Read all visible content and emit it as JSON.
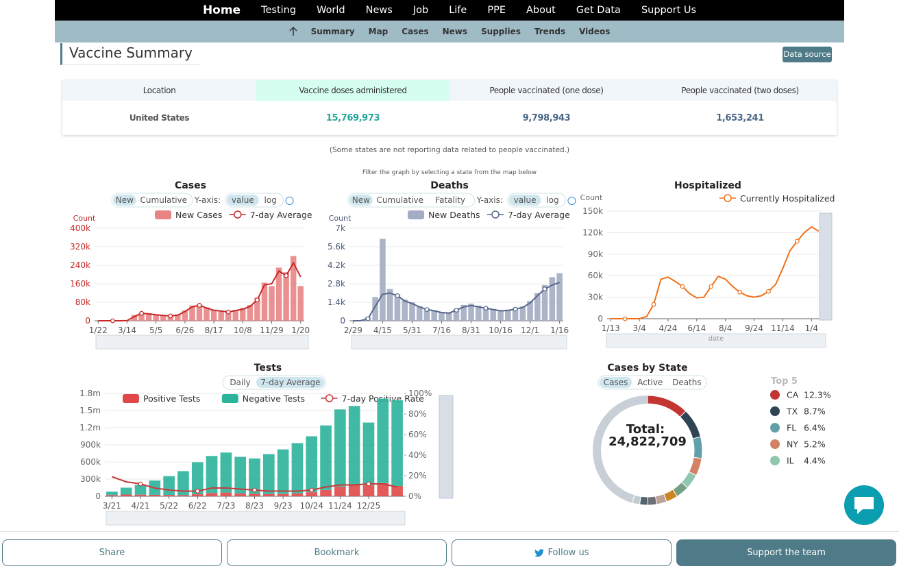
{
  "nav": {
    "brand": "Home",
    "items": [
      "Testing",
      "World",
      "News",
      "Job",
      "Life",
      "PPE",
      "About",
      "Get Data",
      "Support Us"
    ]
  },
  "subnav": [
    "Summary",
    "Map",
    "Cases",
    "News",
    "Supplies",
    "Trends",
    "Videos"
  ],
  "summary": {
    "title": "Vaccine Summary",
    "data_source": "Data source",
    "headers": [
      "Location",
      "Vaccine doses administered",
      "People vaccinated (one dose)",
      "People vaccinated (two doses)"
    ],
    "rows": [
      [
        "United States",
        "15,769,973",
        "9,798,943",
        "1,653,241"
      ]
    ],
    "note": "(Some states are not reporting data related to people vaccinated.)"
  },
  "filter_note": "Filter the graph by selecting a state from the map below",
  "chart_data": [
    {
      "type": "bar",
      "title": "Cases",
      "controls": [
        "New",
        "Cumulative"
      ],
      "yaxis_label": "Y-axis:",
      "scale_options": [
        "value",
        "log"
      ],
      "axis_label": "Count",
      "categories": [
        "1/22",
        null,
        null,
        null,
        "3/14",
        null,
        null,
        null,
        "5/5",
        null,
        null,
        null,
        "6/26",
        null,
        null,
        null,
        "8/17",
        null,
        null,
        null,
        "10/8",
        null,
        null,
        null,
        "11/29",
        null,
        null,
        null,
        "1/20"
      ],
      "series": [
        {
          "name": "New Cases",
          "type": "bar",
          "color": "#e88484",
          "values": [
            0,
            0,
            0,
            0,
            1000,
            25000,
            35000,
            32000,
            28000,
            24000,
            22000,
            27000,
            45000,
            66000,
            70000,
            58000,
            48000,
            44000,
            40000,
            47000,
            55000,
            68000,
            100000,
            165000,
            150000,
            230000,
            210000,
            280000,
            150000
          ]
        },
        {
          "name": "7-day Average",
          "type": "line",
          "color": "#c62828",
          "values": [
            0,
            0,
            0,
            0,
            600,
            18000,
            32000,
            30000,
            26000,
            23000,
            21000,
            24000,
            40000,
            60000,
            67000,
            55000,
            45000,
            42000,
            38000,
            44000,
            50000,
            62000,
            90000,
            155000,
            160000,
            215000,
            195000,
            250000,
            190000
          ]
        }
      ],
      "ylim": [
        0,
        400000
      ],
      "yticks": [
        0,
        {
          "value": 80000,
          "label": "80k"
        },
        {
          "value": 160000,
          "label": "160k"
        },
        {
          "value": 240000,
          "label": "240k"
        },
        {
          "value": 320000,
          "label": "320k"
        },
        {
          "value": 400000,
          "label": "400k"
        }
      ],
      "grid": true,
      "axis_color": "#c62828"
    },
    {
      "type": "bar",
      "title": "Deaths",
      "controls": [
        "New",
        "Cumulative",
        "Fatality"
      ],
      "yaxis_label": "Y-axis:",
      "scale_options": [
        "value",
        "log"
      ],
      "axis_label": "Count",
      "categories": [
        "2/29",
        null,
        null,
        null,
        "4/15",
        null,
        null,
        null,
        "5/31",
        null,
        null,
        null,
        "7/16",
        null,
        null,
        null,
        "8/31",
        null,
        null,
        null,
        "10/16",
        null,
        null,
        null,
        "12/1",
        null,
        null,
        null,
        "1/16"
      ],
      "series": [
        {
          "name": "New Deaths",
          "type": "bar",
          "color": "#a3acc2",
          "values": [
            0,
            20,
            300,
            1800,
            6200,
            2400,
            2000,
            1600,
            1400,
            1100,
            900,
            800,
            650,
            600,
            900,
            1200,
            1300,
            1150,
            1000,
            900,
            800,
            850,
            950,
            1100,
            1500,
            2100,
            2700,
            3300,
            3600
          ]
        },
        {
          "name": "7-day Average",
          "type": "line",
          "color": "#56668c",
          "values": [
            0,
            5,
            150,
            1100,
            2000,
            2100,
            1900,
            1500,
            1300,
            1050,
            850,
            750,
            620,
            580,
            800,
            1050,
            1150,
            1050,
            950,
            850,
            750,
            780,
            880,
            1000,
            1350,
            1900,
            2400,
            2700,
            2900
          ]
        }
      ],
      "ylim": [
        0,
        7000
      ],
      "yticks": [
        0,
        {
          "value": 1400,
          "label": "1.4k"
        },
        {
          "value": 2800,
          "label": "2.8k"
        },
        {
          "value": 4200,
          "label": "4.2k"
        },
        {
          "value": 5600,
          "label": "5.6k"
        },
        {
          "value": 7000,
          "label": "7k"
        }
      ],
      "grid": true,
      "axis_color": "#4a5878"
    },
    {
      "type": "line",
      "title": "Hospitalized",
      "axis_label": "Count",
      "slider_label": "date",
      "categories": [
        "1/13",
        null,
        null,
        null,
        "3/4",
        null,
        null,
        null,
        "4/24",
        null,
        null,
        null,
        "6/14",
        null,
        null,
        null,
        "8/4",
        null,
        null,
        null,
        "9/24",
        null,
        null,
        null,
        "11/14",
        null,
        null,
        null,
        "1/4",
        null
      ],
      "series": [
        {
          "name": "Currently Hospitalized",
          "type": "line",
          "color": "#f07018",
          "values": [
            0,
            0,
            0,
            0,
            0,
            3000,
            20000,
            55000,
            58000,
            52000,
            45000,
            35000,
            29000,
            30000,
            45000,
            59000,
            55000,
            45000,
            37000,
            32000,
            30000,
            32000,
            38000,
            48000,
            70000,
            95000,
            108000,
            120000,
            128000,
            122000
          ]
        }
      ],
      "ylim": [
        0,
        150000
      ],
      "yticks": [
        0,
        {
          "value": 30000,
          "label": "30k"
        },
        {
          "value": 60000,
          "label": "60k"
        },
        {
          "value": 90000,
          "label": "90k"
        },
        {
          "value": 120000,
          "label": "120k"
        },
        {
          "value": 150000,
          "label": "150k"
        }
      ],
      "grid": true,
      "axis_color": "#666"
    },
    {
      "type": "bar",
      "title": "Tests",
      "controls": [
        "Daily",
        "7-day Average"
      ],
      "active": 1,
      "categories": [
        "3/21",
        null,
        "4/21",
        null,
        "5/22",
        null,
        "6/22",
        null,
        "7/23",
        null,
        "8/23",
        null,
        "9/23",
        null,
        "10/24",
        null,
        "11/24",
        null,
        "12/25",
        null,
        null
      ],
      "series": [
        {
          "name": "Positive Tests",
          "type": "bar",
          "stack": true,
          "color": "#e04848",
          "values": [
            20000,
            30000,
            28000,
            25000,
            22000,
            20000,
            35000,
            55000,
            65000,
            50000,
            42000,
            38000,
            40000,
            50000,
            70000,
            110000,
            170000,
            200000,
            190000,
            230000,
            180000
          ]
        },
        {
          "name": "Negative Tests",
          "type": "bar",
          "stack": true,
          "color": "#2bb39b",
          "values": [
            60000,
            120000,
            170000,
            250000,
            330000,
            420000,
            560000,
            650000,
            700000,
            640000,
            620000,
            700000,
            780000,
            880000,
            980000,
            1130000,
            1350000,
            1380000,
            1100000,
            1480000,
            1500000
          ]
        },
        {
          "name": "7-day Positive Rate",
          "type": "line",
          "axis": "y2",
          "color": "#c63a3a",
          "values": [
            19,
            14,
            12,
            8,
            6,
            5,
            5,
            8,
            8,
            7,
            6,
            5,
            5,
            5,
            6,
            9,
            11,
            11,
            12,
            12,
            9
          ]
        }
      ],
      "ylim": [
        0,
        1800000
      ],
      "yticks": [
        0,
        {
          "value": 300000,
          "label": "300k"
        },
        {
          "value": 600000,
          "label": "600k"
        },
        {
          "value": 900000,
          "label": "900k"
        },
        {
          "value": 1200000,
          "label": "1.2m"
        },
        {
          "value": 1500000,
          "label": "1.5m"
        },
        {
          "value": 1800000,
          "label": "1.8m"
        }
      ],
      "y2lim": [
        0,
        100
      ],
      "y2ticks": [
        {
          "value": 0,
          "label": "0%"
        },
        {
          "value": 20,
          "label": "20%"
        },
        {
          "value": 40,
          "label": "40%"
        },
        {
          "value": 60,
          "label": "60%"
        },
        {
          "value": 80,
          "label": "80%"
        },
        {
          "value": 100,
          "label": "100%"
        }
      ],
      "grid": true,
      "axis_color": "#666"
    },
    {
      "type": "pie",
      "donut": true,
      "title": "Cases by State",
      "controls": [
        "Cases",
        "Active",
        "Deaths"
      ],
      "total_label": "Total:",
      "total": "24,822,709",
      "legend_title": "Top 5",
      "categories": [
        "CA",
        "TX",
        "FL",
        "NY",
        "IL"
      ],
      "values": [
        12.3,
        8.7,
        6.4,
        5.2,
        4.4
      ],
      "value_labels": [
        "12.3%",
        "8.7%",
        "6.4%",
        "5.2%",
        "4.4%"
      ],
      "colors": [
        "#c23531",
        "#2f4554",
        "#61a0a8",
        "#d48265",
        "#91c7ae"
      ],
      "others": [
        3.9,
        3.4,
        3.0,
        2.6,
        2.4,
        2.2
      ],
      "other_colors": [
        "#749f83",
        "#ca8622",
        "#bda29a",
        "#6e7074",
        "#546570",
        "#c4ccd3"
      ]
    }
  ],
  "buttons": [
    "Share",
    "Bookmark",
    "Follow us",
    "Support the team"
  ]
}
